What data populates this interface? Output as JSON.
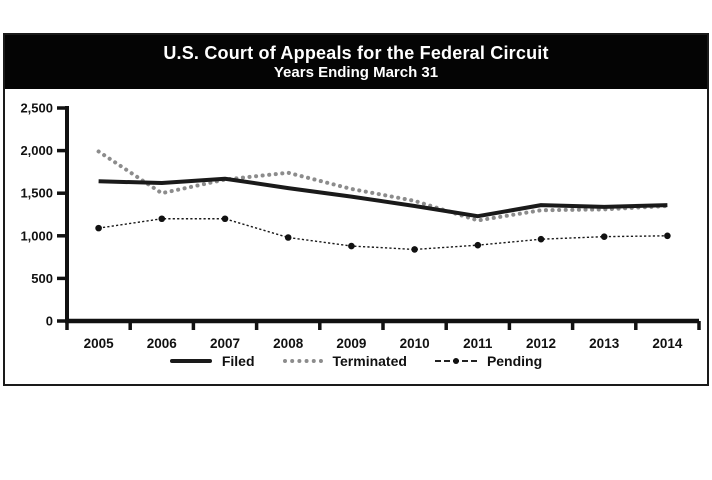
{
  "header": {
    "title_line1": "U.S. Court of Appeals for the Federal Circuit",
    "title_line2": "Years Ending March 31"
  },
  "chart_data": {
    "type": "line",
    "categories": [
      "2005",
      "2006",
      "2007",
      "2008",
      "2009",
      "2010",
      "2011",
      "2012",
      "2013",
      "2014"
    ],
    "series": [
      {
        "name": "Filed",
        "style": "solid",
        "color": "#1a1a1a",
        "values": [
          1640,
          1620,
          1670,
          1560,
          1460,
          1350,
          1230,
          1360,
          1340,
          1360
        ]
      },
      {
        "name": "Terminated",
        "style": "dotted",
        "color": "#8c8c8c",
        "values": [
          1990,
          1500,
          1660,
          1740,
          1550,
          1410,
          1180,
          1300,
          1310,
          1350
        ]
      },
      {
        "name": "Pending",
        "style": "dash-dot-marker",
        "color": "#1a1a1a",
        "values": [
          1090,
          1200,
          1200,
          980,
          880,
          840,
          890,
          960,
          990,
          1000
        ]
      }
    ],
    "ylim": [
      0,
      2500
    ],
    "y_ticks": [
      0,
      500,
      1000,
      1500,
      2000,
      2500
    ],
    "y_tick_labels": [
      "0",
      "500",
      "1,000",
      "1,500",
      "2,000",
      "2,500"
    ],
    "grid": false,
    "legend_position": "bottom",
    "axis_color": "#111111"
  }
}
